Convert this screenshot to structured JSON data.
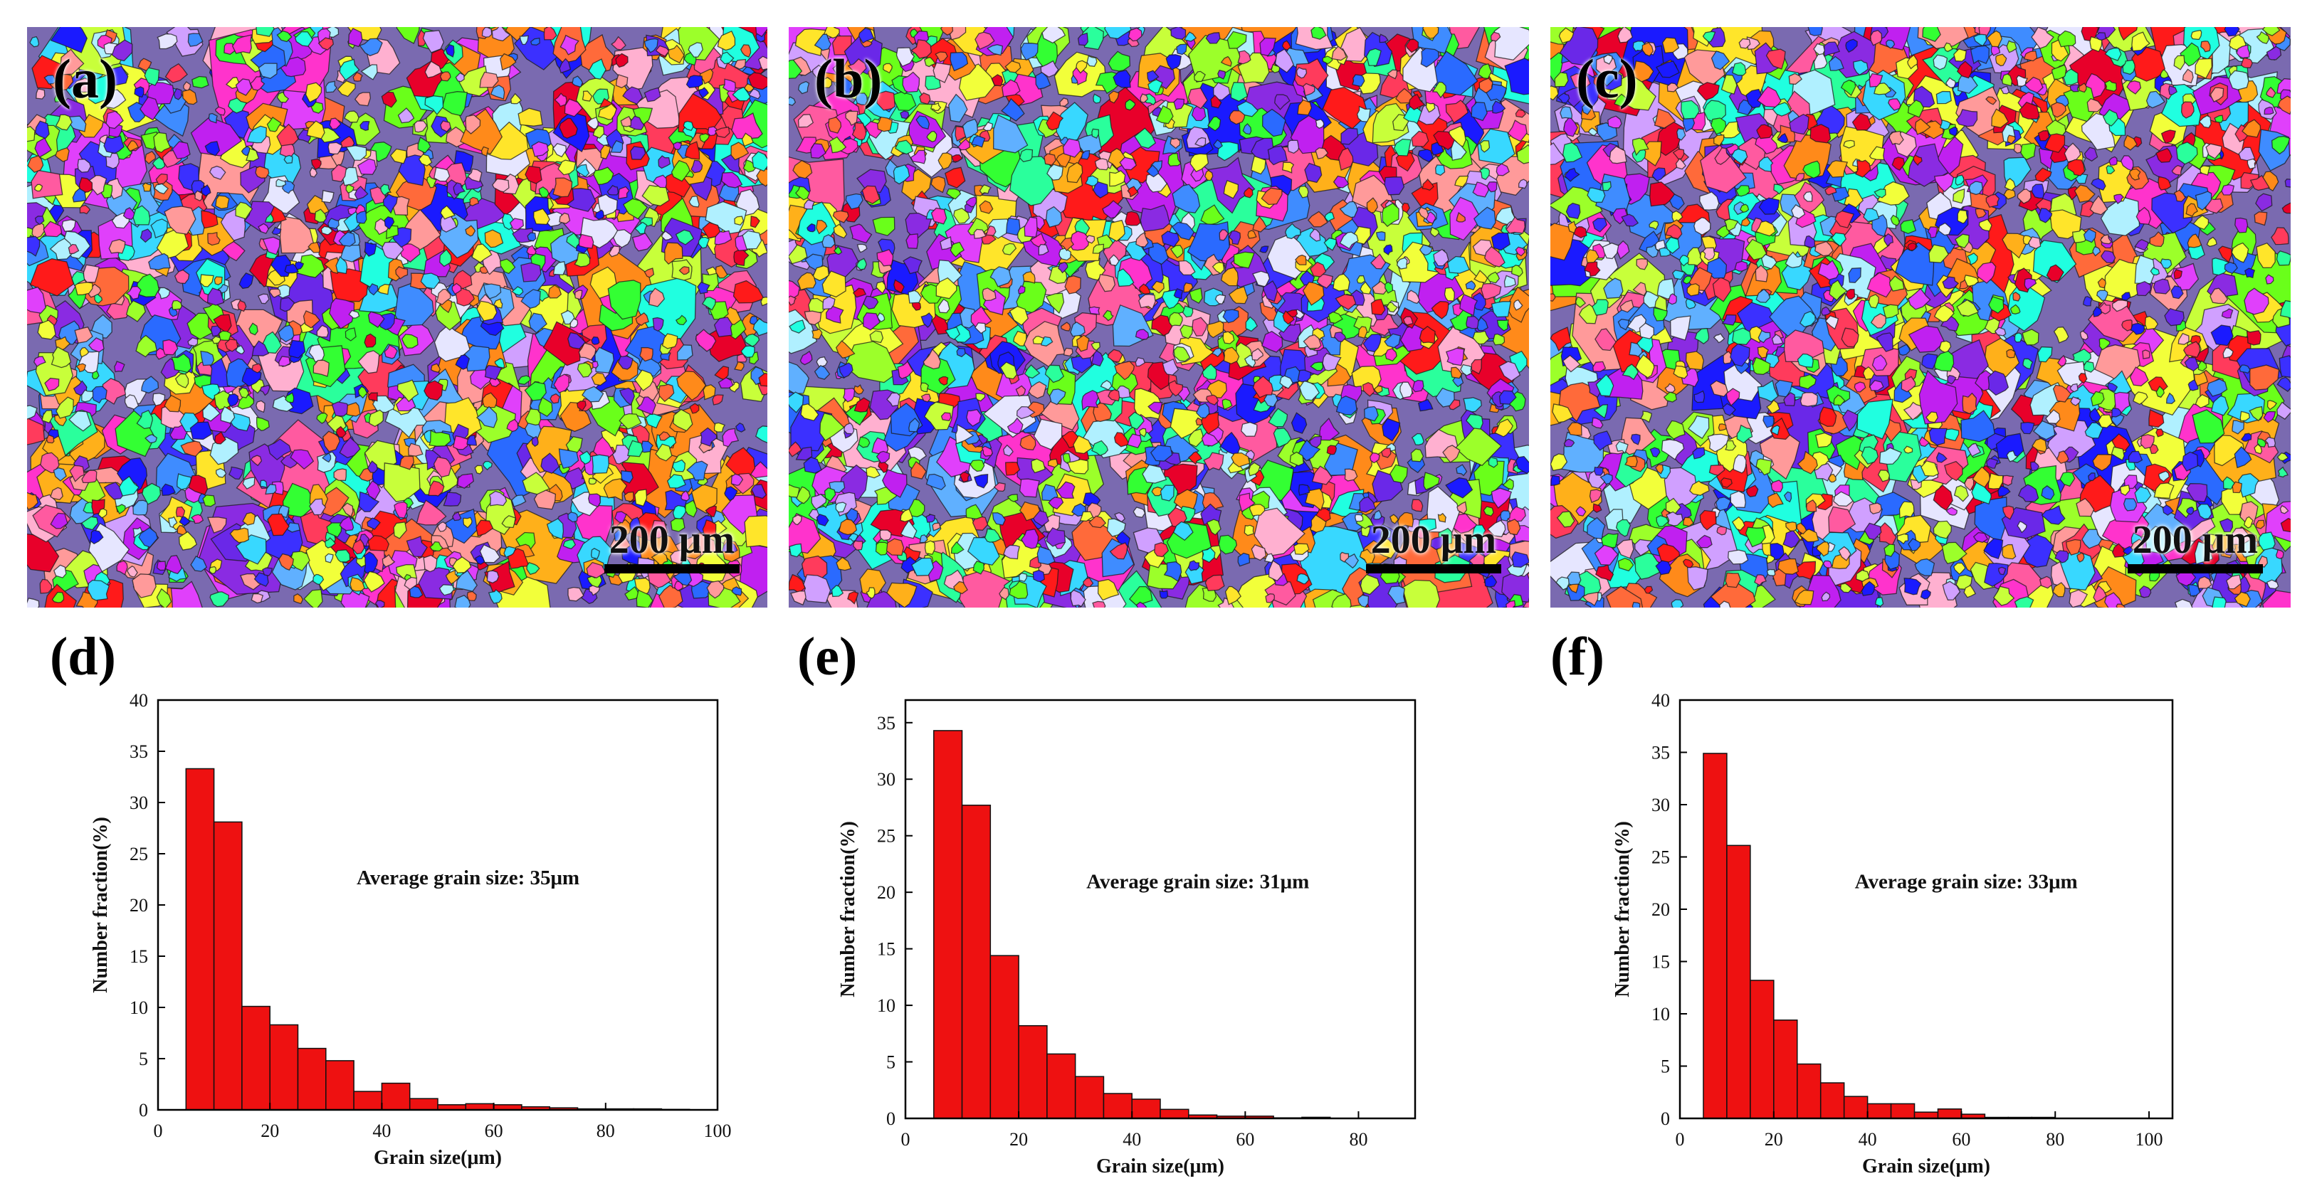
{
  "maps": [
    {
      "label": "(a)",
      "scale_bar": "200 μm"
    },
    {
      "label": "(b)",
      "scale_bar": "200 μm"
    },
    {
      "label": "(c)",
      "scale_bar": "200 μm"
    }
  ],
  "palette": [
    "#ff1a1a",
    "#e8002a",
    "#ff3b5c",
    "#ff5aa0",
    "#ff33cc",
    "#e040fb",
    "#c020f0",
    "#8a2be2",
    "#6a28e8",
    "#3b30ff",
    "#1a1aff",
    "#2a6aff",
    "#3f8cff",
    "#60b0ff",
    "#38d8ff",
    "#20ffe0",
    "#2aff9c",
    "#33ff33",
    "#6aff1a",
    "#9cff2a",
    "#c8ff3a",
    "#f2ff3a",
    "#ffe52a",
    "#ffb01a",
    "#ff8a1a",
    "#ff6a3a",
    "#ff9a9a",
    "#ffb0d0",
    "#d0a0ff",
    "#b0f0ff",
    "#e6e6ff"
  ],
  "chart_data": [
    {
      "type": "bar",
      "panel_label": "(d)",
      "annotation": "Average grain size: 35μm",
      "xlabel": "Grain size(μm)",
      "ylabel": "Number fraction(%)",
      "xlim": [
        0,
        100
      ],
      "ylim": [
        0,
        40
      ],
      "xticks": [
        0,
        20,
        40,
        60,
        80,
        100
      ],
      "yticks": [
        0,
        5,
        10,
        15,
        20,
        25,
        30,
        35,
        40
      ],
      "bin_width": 5,
      "x": [
        7.5,
        12.5,
        17.5,
        22.5,
        27.5,
        32.5,
        37.5,
        42.5,
        47.5,
        52.5,
        57.5,
        62.5,
        67.5,
        72.5,
        77.5,
        82.5,
        87.5,
        92.5
      ],
      "values": [
        33.3,
        28.1,
        10.1,
        8.3,
        6.0,
        4.8,
        1.8,
        2.6,
        1.1,
        0.5,
        0.6,
        0.5,
        0.3,
        0.2,
        0.1,
        0.1,
        0.1,
        0.05
      ]
    },
    {
      "type": "bar",
      "panel_label": "(e)",
      "annotation": "Average grain size: 31μm",
      "xlabel": "Grain size(μm)",
      "ylabel": "Number fraction(%)",
      "xlim": [
        0,
        90
      ],
      "ylim": [
        0,
        37
      ],
      "xticks": [
        0,
        20,
        40,
        60,
        80
      ],
      "yticks": [
        0,
        5,
        10,
        15,
        20,
        25,
        30,
        35
      ],
      "bin_width": 5,
      "x": [
        7.5,
        12.5,
        17.5,
        22.5,
        27.5,
        32.5,
        37.5,
        42.5,
        47.5,
        52.5,
        57.5,
        62.5,
        67.5,
        72.5
      ],
      "values": [
        34.3,
        27.7,
        14.4,
        8.2,
        5.7,
        3.7,
        2.2,
        1.7,
        0.8,
        0.3,
        0.2,
        0.2,
        0.05,
        0.1
      ]
    },
    {
      "type": "bar",
      "panel_label": "(f)",
      "annotation": "Average grain size: 33μm",
      "xlabel": "Grain size(μm)",
      "ylabel": "Number fraction(%)",
      "xlim": [
        0,
        105
      ],
      "ylim": [
        0,
        40
      ],
      "xticks": [
        0,
        20,
        40,
        60,
        80,
        100
      ],
      "yticks": [
        0,
        5,
        10,
        15,
        20,
        25,
        30,
        35,
        40
      ],
      "bin_width": 5,
      "x": [
        7.5,
        12.5,
        17.5,
        22.5,
        27.5,
        32.5,
        37.5,
        42.5,
        47.5,
        52.5,
        57.5,
        62.5,
        67.5,
        72.5,
        77.5
      ],
      "values": [
        34.9,
        26.1,
        13.2,
        9.4,
        5.2,
        3.4,
        2.1,
        1.4,
        1.4,
        0.6,
        0.9,
        0.4,
        0.1,
        0.1,
        0.1
      ]
    }
  ]
}
